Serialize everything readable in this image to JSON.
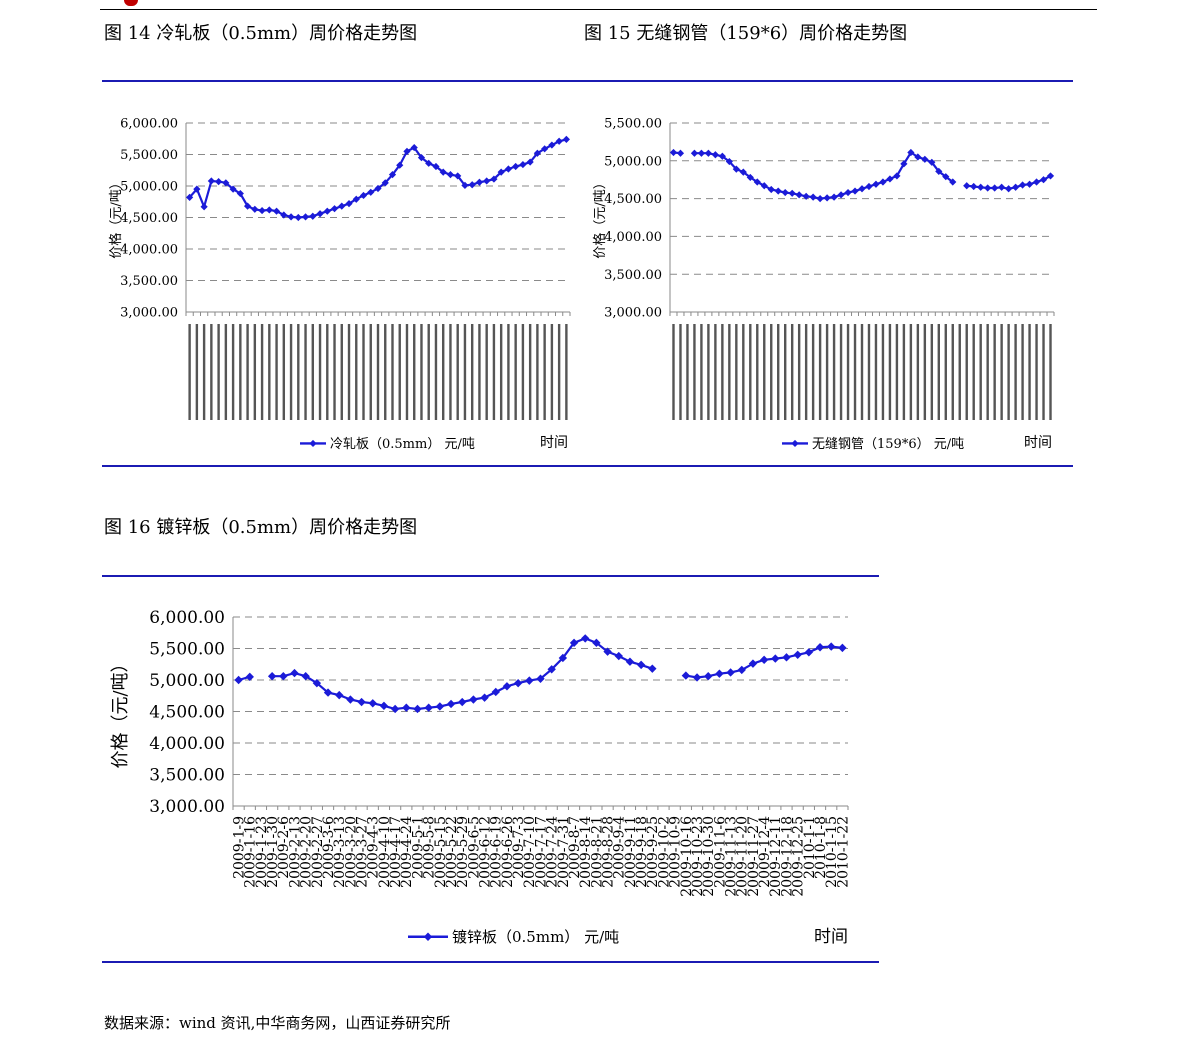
{
  "header": {
    "accent_color": "#c00000"
  },
  "figures": [
    {
      "label": "图 14 冷轧板（0.5mm）周价格走势图"
    },
    {
      "label": "图 15 无缝钢管（159*6）周价格走势图"
    },
    {
      "label": "图 16 镀锌板（0.5mm）周价格走势图"
    }
  ],
  "source": "数据来源：wind 资讯,中华商务网，山西证券研究所",
  "series_color": "#1b1bd8",
  "chart_data": [
    {
      "type": "line",
      "title": "",
      "xlabel": "时间",
      "ylabel": "价格（元/吨）",
      "ylim": [
        3000,
        6000
      ],
      "yticks": [
        "3,000.00",
        "3,500.00",
        "4,000.00",
        "4,500.00",
        "5,000.00",
        "5,500.00",
        "6,000.00"
      ],
      "grid": true,
      "legend": "bottom",
      "series": [
        {
          "name": "冷轧板（0.5mm）  元/吨",
          "values": [
            4820,
            4950,
            4670,
            5080,
            5070,
            5050,
            4950,
            4880,
            4680,
            4630,
            4610,
            4620,
            4600,
            4540,
            4510,
            4500,
            4510,
            4520,
            4560,
            4600,
            4640,
            4680,
            4720,
            4790,
            4850,
            4900,
            4960,
            5050,
            5180,
            5330,
            5550,
            5610,
            5450,
            5360,
            5310,
            5220,
            5180,
            5160,
            5010,
            5020,
            5060,
            5080,
            5110,
            5220,
            5270,
            5310,
            5340,
            5380,
            5520,
            5590,
            5650,
            5710,
            5740
          ]
        }
      ]
    },
    {
      "type": "line",
      "title": "",
      "xlabel": "时间",
      "ylabel": "价格（元/吨）",
      "ylim": [
        3000,
        5500
      ],
      "yticks": [
        "3,000.00",
        "3,500.00",
        "4,000.00",
        "4,500.00",
        "5,000.00",
        "5,500.00"
      ],
      "grid": true,
      "legend": "bottom",
      "series": [
        {
          "name": "无缝钢管（159*6）  元/吨",
          "values": [
            5110,
            5100,
            null,
            5100,
            5100,
            5100,
            5080,
            5060,
            4990,
            4890,
            4850,
            4780,
            4720,
            4670,
            4620,
            4600,
            4580,
            4570,
            4550,
            4530,
            4520,
            4500,
            4510,
            4520,
            4550,
            4580,
            4600,
            4630,
            4660,
            4690,
            4720,
            4760,
            4800,
            4960,
            5110,
            5050,
            5020,
            4980,
            4860,
            4790,
            4720,
            null,
            4670,
            4660,
            4650,
            4640,
            4640,
            4650,
            4630,
            4650,
            4680,
            4690,
            4720,
            4750,
            4800
          ]
        }
      ]
    },
    {
      "type": "line",
      "title": "",
      "xlabel": "时间",
      "ylabel": "价格（元/吨）",
      "ylim": [
        3000,
        6000
      ],
      "yticks": [
        "3,000.00",
        "3,500.00",
        "4,000.00",
        "4,500.00",
        "5,000.00",
        "5,500.00",
        "6,000.00"
      ],
      "grid": true,
      "legend": "bottom",
      "categories": [
        "2009-1-9",
        "2009-1-16",
        "2009-1-23",
        "2009-1-30",
        "2009-2-6",
        "2009-2-13",
        "2009-2-20",
        "2009-2-27",
        "2009-3-6",
        "2009-3-13",
        "2009-3-20",
        "2009-3-27",
        "2009-4-3",
        "2009-4-10",
        "2009-4-17",
        "2009-4-24",
        "2009-5-1",
        "2009-5-8",
        "2009-5-15",
        "2009-5-22",
        "2009-5-29",
        "2009-6-5",
        "2009-6-12",
        "2009-6-19",
        "2009-6-26",
        "2009-7-3",
        "2009-7-10",
        "2009-7-17",
        "2009-7-24",
        "2009-7-31",
        "2009-8-7",
        "2009-8-14",
        "2009-8-21",
        "2009-8-28",
        "2009-9-4",
        "2009-9-11",
        "2009-9-18",
        "2009-9-25",
        "2009-10-2",
        "2009-10-9",
        "2009-10-16",
        "2009-10-23",
        "2009-10-30",
        "2009-11-6",
        "2009-11-13",
        "2009-11-20",
        "2009-11-27",
        "2009-12-4",
        "2009-12-11",
        "2009-12-18",
        "2009-12-25",
        "2010-1-1",
        "2010-1-8",
        "2010-1-15",
        "2010-1-22"
      ],
      "series": [
        {
          "name": "镀锌板（0.5mm）      元/吨",
          "values": [
            5000,
            5050,
            null,
            5060,
            5060,
            5110,
            5060,
            4950,
            4800,
            4760,
            4690,
            4650,
            4630,
            4590,
            4540,
            4560,
            4540,
            4560,
            4580,
            4620,
            4650,
            4690,
            4720,
            4810,
            4900,
            4950,
            4990,
            5020,
            5170,
            5350,
            5590,
            5660,
            5590,
            5450,
            5380,
            5290,
            5240,
            5180,
            null,
            null,
            5070,
            5040,
            5060,
            5100,
            5120,
            5160,
            5260,
            5320,
            5340,
            5360,
            5400,
            5440,
            5520,
            5530,
            5510
          ]
        }
      ]
    }
  ]
}
